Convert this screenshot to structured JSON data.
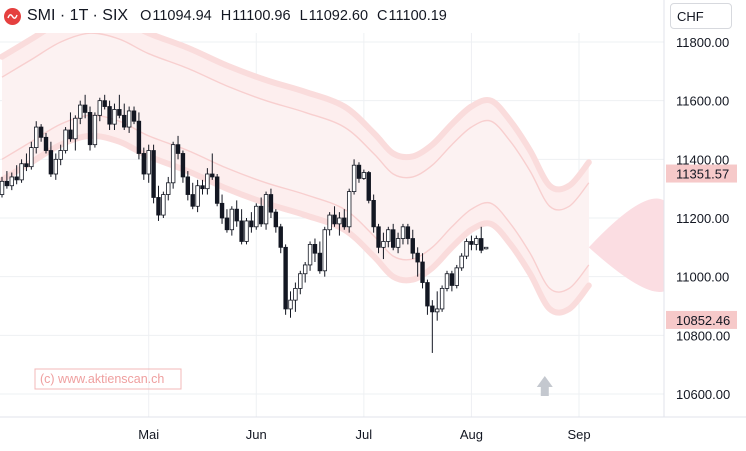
{
  "header": {
    "symbol": "SMI · 1T · SIX",
    "open_label": "O",
    "open": "11094.94",
    "high_label": "H",
    "high": "11100.96",
    "low_label": "L",
    "low": "11092.60",
    "close_label": "C",
    "close": "11100.19"
  },
  "currency_selector": {
    "value": "CHF"
  },
  "watermark": "(c) www.aktienscan.ch",
  "price_badges": {
    "upper": "11351.57",
    "lower": "10852.46"
  },
  "colors": {
    "up": "#ffffff",
    "down": "#131722",
    "band": "#f7b5b5",
    "badge": "#f6c9c9",
    "marker": "#c4c8cf",
    "logo": "#e5403f"
  },
  "chart_data": {
    "type": "candlestick",
    "ylim": [
      10500,
      11900
    ],
    "y_ticks": [
      10600,
      10800,
      11000,
      11200,
      11400,
      11600,
      11800
    ],
    "y_tick_labels": [
      "10600.00",
      "10800.00",
      "11000.00",
      "11200.00",
      "11400.00",
      "11600.00",
      "11800.00"
    ],
    "x_labels": [
      "Mai",
      "Jun",
      "Jul",
      "Aug",
      "Sep"
    ],
    "x_label_day": [
      30,
      52,
      74,
      96,
      118
    ],
    "last_day": 120,
    "ohlc": [
      [
        11280,
        11340,
        11270,
        11325
      ],
      [
        11325,
        11360,
        11300,
        11310
      ],
      [
        11310,
        11355,
        11295,
        11340
      ],
      [
        11340,
        11380,
        11315,
        11330
      ],
      [
        11330,
        11400,
        11320,
        11385
      ],
      [
        11385,
        11420,
        11360,
        11375
      ],
      [
        11375,
        11460,
        11365,
        11440
      ],
      [
        11440,
        11530,
        11420,
        11510
      ],
      [
        11510,
        11520,
        11460,
        11475
      ],
      [
        11475,
        11490,
        11420,
        11430
      ],
      [
        11430,
        11460,
        11340,
        11350
      ],
      [
        11350,
        11420,
        11330,
        11400
      ],
      [
        11400,
        11450,
        11380,
        11430
      ],
      [
        11430,
        11510,
        11420,
        11500
      ],
      [
        11500,
        11560,
        11460,
        11470
      ],
      [
        11470,
        11550,
        11430,
        11540
      ],
      [
        11540,
        11600,
        11520,
        11585
      ],
      [
        11585,
        11620,
        11540,
        11560
      ],
      [
        11560,
        11580,
        11430,
        11450
      ],
      [
        11450,
        11560,
        11440,
        11550
      ],
      [
        11550,
        11610,
        11530,
        11600
      ],
      [
        11600,
        11620,
        11570,
        11580
      ],
      [
        11580,
        11600,
        11500,
        11520
      ],
      [
        11520,
        11590,
        11500,
        11570
      ],
      [
        11570,
        11620,
        11540,
        11550
      ],
      [
        11550,
        11590,
        11500,
        11510
      ],
      [
        11510,
        11580,
        11490,
        11565
      ],
      [
        11565,
        11580,
        11520,
        11530
      ],
      [
        11530,
        11560,
        11400,
        11420
      ],
      [
        11420,
        11440,
        11330,
        11350
      ],
      [
        11350,
        11450,
        11320,
        11430
      ],
      [
        11430,
        11450,
        11250,
        11270
      ],
      [
        11270,
        11310,
        11190,
        11210
      ],
      [
        11210,
        11290,
        11200,
        11280
      ],
      [
        11280,
        11340,
        11260,
        11320
      ],
      [
        11320,
        11460,
        11300,
        11450
      ],
      [
        11450,
        11480,
        11400,
        11420
      ],
      [
        11420,
        11430,
        11320,
        11340
      ],
      [
        11340,
        11360,
        11260,
        11280
      ],
      [
        11280,
        11320,
        11230,
        11240
      ],
      [
        11240,
        11330,
        11220,
        11310
      ],
      [
        11310,
        11330,
        11280,
        11300
      ],
      [
        11300,
        11370,
        11280,
        11350
      ],
      [
        11350,
        11420,
        11330,
        11340
      ],
      [
        11340,
        11350,
        11240,
        11250
      ],
      [
        11250,
        11280,
        11180,
        11200
      ],
      [
        11200,
        11230,
        11150,
        11160
      ],
      [
        11160,
        11240,
        11140,
        11230
      ],
      [
        11230,
        11260,
        11170,
        11190
      ],
      [
        11190,
        11230,
        11110,
        11120
      ],
      [
        11120,
        11200,
        11110,
        11190
      ],
      [
        11190,
        11220,
        11150,
        11170
      ],
      [
        11170,
        11250,
        11160,
        11240
      ],
      [
        11240,
        11270,
        11170,
        11180
      ],
      [
        11180,
        11290,
        11160,
        11280
      ],
      [
        11280,
        11300,
        11200,
        11220
      ],
      [
        11220,
        11230,
        11150,
        11170
      ],
      [
        11170,
        11180,
        11080,
        11100
      ],
      [
        11100,
        11110,
        10870,
        10890
      ],
      [
        10890,
        10950,
        10860,
        10920
      ],
      [
        10920,
        10980,
        10880,
        10960
      ],
      [
        10960,
        11020,
        10940,
        11010
      ],
      [
        11010,
        11050,
        10980,
        11040
      ],
      [
        11040,
        11120,
        11020,
        11110
      ],
      [
        11110,
        11130,
        11050,
        11080
      ],
      [
        11080,
        11120,
        11010,
        11020
      ],
      [
        11020,
        11170,
        11000,
        11160
      ],
      [
        11160,
        11220,
        11140,
        11210
      ],
      [
        11210,
        11240,
        11170,
        11180
      ],
      [
        11180,
        11220,
        11140,
        11200
      ],
      [
        11200,
        11230,
        11160,
        11170
      ],
      [
        11170,
        11300,
        11150,
        11290
      ],
      [
        11290,
        11400,
        11280,
        11380
      ],
      [
        11380,
        11390,
        11320,
        11335
      ],
      [
        11335,
        11365,
        11330,
        11355
      ],
      [
        11355,
        11360,
        11250,
        11260
      ],
      [
        11260,
        11280,
        11150,
        11170
      ],
      [
        11170,
        11180,
        11080,
        11100
      ],
      [
        11100,
        11150,
        11060,
        11120
      ],
      [
        11120,
        11170,
        11100,
        11160
      ],
      [
        11160,
        11180,
        11090,
        11100
      ],
      [
        11100,
        11150,
        11080,
        11130
      ],
      [
        11130,
        11180,
        11110,
        11170
      ],
      [
        11170,
        11180,
        11110,
        11130
      ],
      [
        11130,
        11160,
        11060,
        11080
      ],
      [
        11080,
        11100,
        11000,
        11050
      ],
      [
        11050,
        11080,
        10960,
        10980
      ],
      [
        10980,
        10990,
        10870,
        10900
      ],
      [
        10900,
        10920,
        10740,
        10880
      ],
      [
        10880,
        10950,
        10850,
        10890
      ],
      [
        10890,
        10970,
        10880,
        10960
      ],
      [
        10960,
        11020,
        10950,
        11010
      ],
      [
        11010,
        11020,
        10950,
        10970
      ],
      [
        10970,
        11040,
        10960,
        11030
      ],
      [
        11030,
        11080,
        11020,
        11070
      ],
      [
        11070,
        11130,
        11060,
        11120
      ],
      [
        11120,
        11140,
        11090,
        11110
      ],
      [
        11110,
        11140,
        11090,
        11130
      ],
      [
        11130,
        11170,
        11080,
        11090
      ],
      [
        11094.94,
        11100.96,
        11092.6,
        11100.19
      ]
    ],
    "band_middle": [
      [
        0,
        11540
      ],
      [
        6,
        11600
      ],
      [
        12,
        11660
      ],
      [
        18,
        11690
      ],
      [
        24,
        11670
      ],
      [
        30,
        11620
      ],
      [
        38,
        11570
      ],
      [
        46,
        11510
      ],
      [
        54,
        11460
      ],
      [
        62,
        11420
      ],
      [
        70,
        11370
      ],
      [
        76,
        11280
      ],
      [
        80,
        11210
      ],
      [
        84,
        11200
      ],
      [
        88,
        11240
      ],
      [
        92,
        11310
      ],
      [
        96,
        11370
      ],
      [
        100,
        11390
      ],
      [
        104,
        11320
      ],
      [
        108,
        11220
      ],
      [
        112,
        11100
      ],
      [
        116,
        11100
      ],
      [
        120,
        11180
      ]
    ],
    "band_width": 140,
    "band_outer_extra": 70,
    "forecast_cone": {
      "start": [
        120,
        11100
      ],
      "upper": 11260,
      "lower": 10950
    },
    "marker_day": 111
  }
}
